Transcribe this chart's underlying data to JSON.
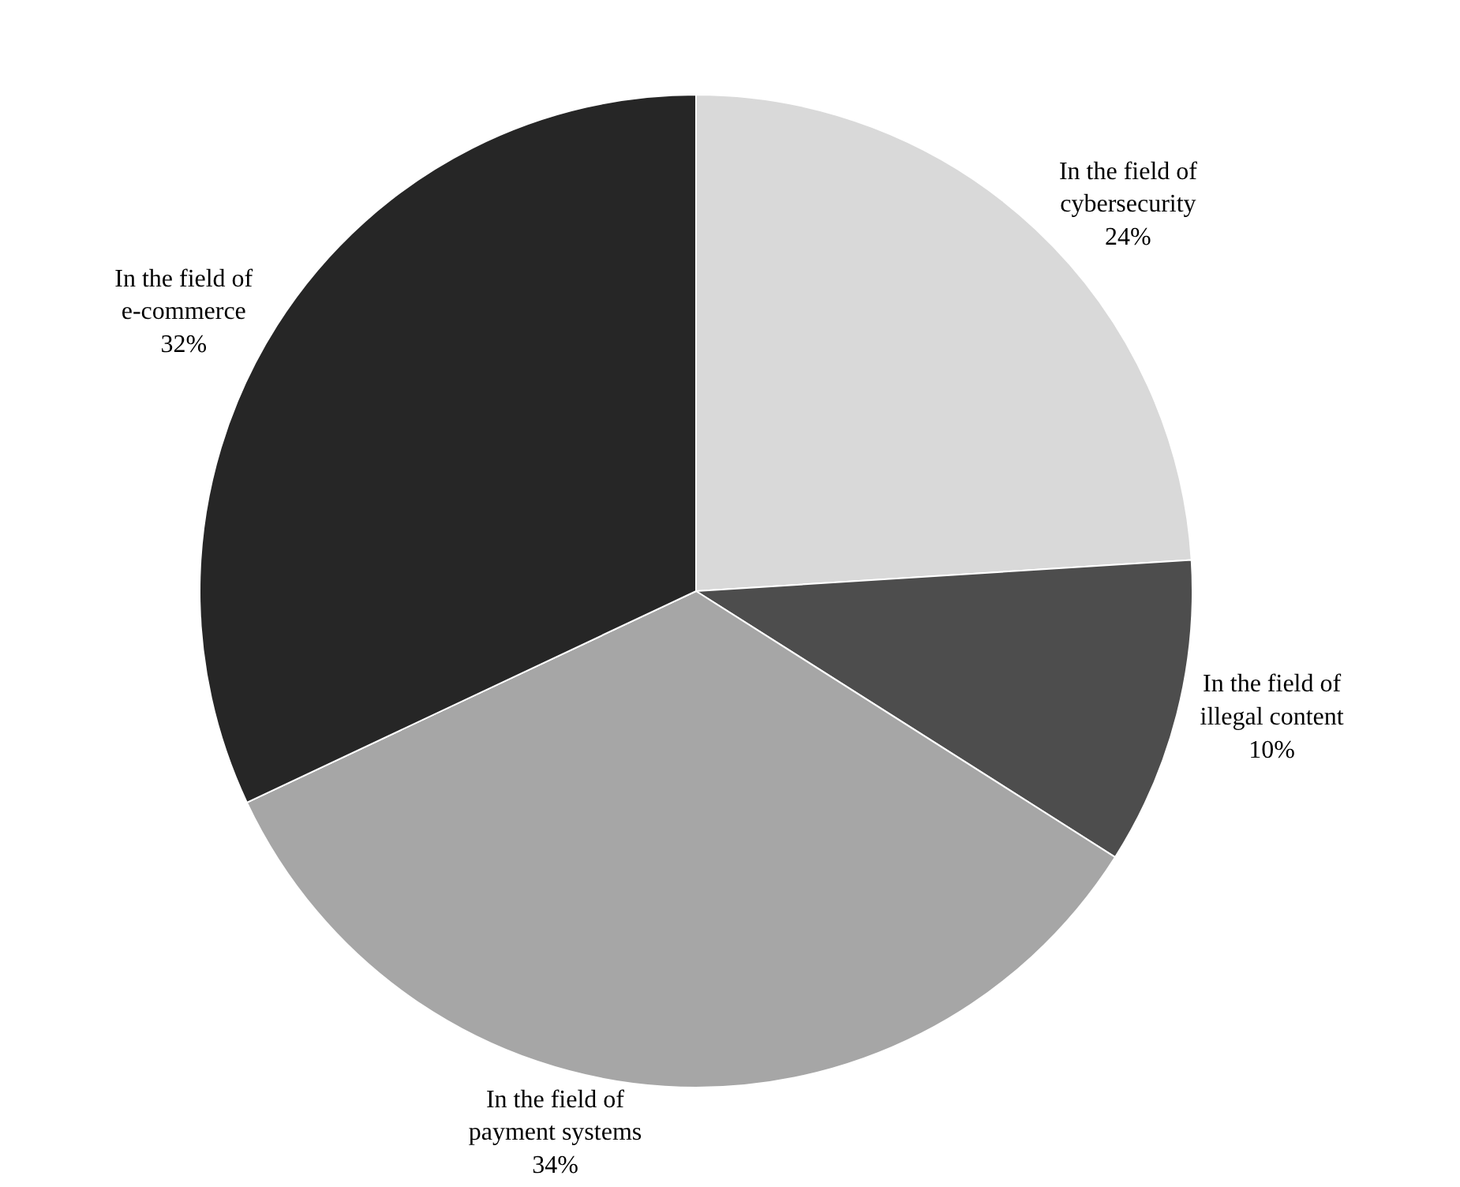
{
  "chart_data": {
    "type": "pie",
    "categories": [
      "In the field of cybersecurity",
      "In the field of illegal content",
      "In the field of payment systems",
      "In the field of e-commerce"
    ],
    "values": [
      24,
      10,
      34,
      32
    ],
    "value_labels": [
      "24%",
      "10%",
      "34%",
      "32%"
    ],
    "colors": [
      "#d9d9d9",
      "#4d4d4d",
      "#a6a6a6",
      "#262626"
    ],
    "legend": false
  }
}
